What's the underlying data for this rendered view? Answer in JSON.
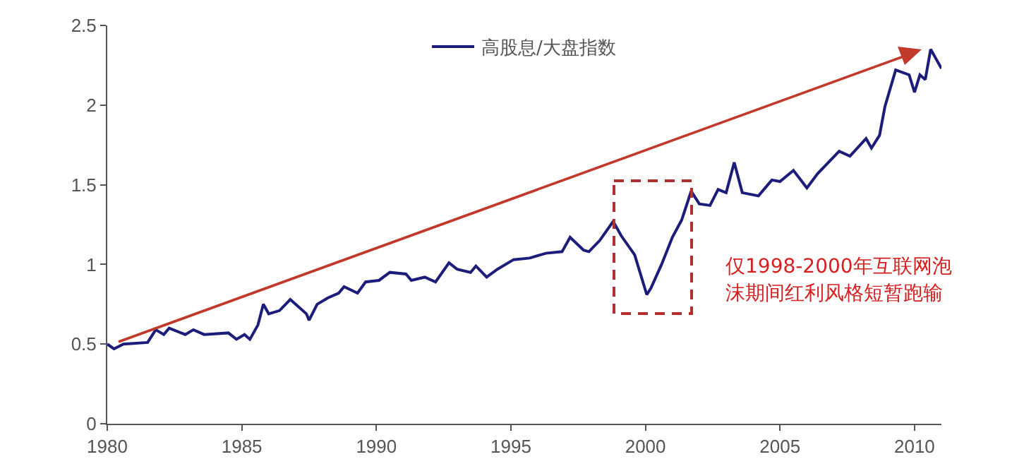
{
  "chart_data": {
    "type": "line",
    "xlim": [
      1980,
      2011
    ],
    "xticks": [
      1980,
      1985,
      1990,
      1995,
      2000,
      2005,
      2010
    ],
    "ylim": [
      0,
      2.5
    ],
    "yticks": [
      0,
      0.5,
      1,
      1.5,
      2,
      2.5
    ],
    "grid": false,
    "legend": "top",
    "marker": "none",
    "line_style": "solid",
    "series": [
      {
        "name": "高股息/大盘指数",
        "color": "#1c1c7a",
        "x": [
          1980,
          1980.25,
          1980.6,
          1981.5,
          1981.8,
          1982.1,
          1982.3,
          1982.9,
          1983.2,
          1983.6,
          1984.5,
          1984.8,
          1985.1,
          1985.3,
          1985.6,
          1985.8,
          1986.0,
          1986.4,
          1986.8,
          1987.0,
          1987.4,
          1987.5,
          1987.8,
          1988.2,
          1988.6,
          1988.8,
          1989.3,
          1989.6,
          1990.1,
          1990.5,
          1991.1,
          1991.3,
          1991.8,
          1992.2,
          1992.7,
          1993.0,
          1993.5,
          1993.7,
          1994.1,
          1994.5,
          1995.1,
          1995.7,
          1996.3,
          1996.9,
          1997.2,
          1997.7,
          1997.9,
          1998.3,
          1998.8,
          1999.1,
          1999.6,
          2000.05,
          2000.2,
          2000.6,
          2001.0,
          2001.35,
          2001.7,
          2002.0,
          2002.4,
          2002.7,
          2003.0,
          2003.3,
          2003.6,
          2004.2,
          2004.7,
          2005.0,
          2005.5,
          2006.0,
          2006.4,
          2007.2,
          2007.6,
          2008.2,
          2008.4,
          2008.7,
          2008.9,
          2009.3,
          2009.8,
          2010.0,
          2010.2,
          2010.4,
          2010.6,
          2010.8,
          2011.0
        ],
        "values": [
          0.5,
          0.47,
          0.5,
          0.51,
          0.59,
          0.56,
          0.6,
          0.56,
          0.59,
          0.56,
          0.57,
          0.53,
          0.56,
          0.53,
          0.62,
          0.75,
          0.69,
          0.71,
          0.78,
          0.75,
          0.69,
          0.65,
          0.75,
          0.79,
          0.82,
          0.86,
          0.82,
          0.89,
          0.9,
          0.95,
          0.94,
          0.9,
          0.92,
          0.89,
          1.01,
          0.97,
          0.95,
          0.99,
          0.92,
          0.97,
          1.03,
          1.04,
          1.07,
          1.08,
          1.17,
          1.09,
          1.08,
          1.15,
          1.27,
          1.18,
          1.06,
          0.81,
          0.85,
          1.0,
          1.17,
          1.28,
          1.46,
          1.38,
          1.37,
          1.47,
          1.45,
          1.64,
          1.45,
          1.43,
          1.53,
          1.52,
          1.59,
          1.48,
          1.57,
          1.71,
          1.68,
          1.79,
          1.73,
          1.81,
          1.99,
          2.22,
          2.19,
          2.08,
          2.19,
          2.16,
          2.35,
          2.29,
          2.23
        ]
      }
    ],
    "annotations": [
      "仅1998-2000年互联网泡沫期间红利风格短暂跑输"
    ]
  }
}
